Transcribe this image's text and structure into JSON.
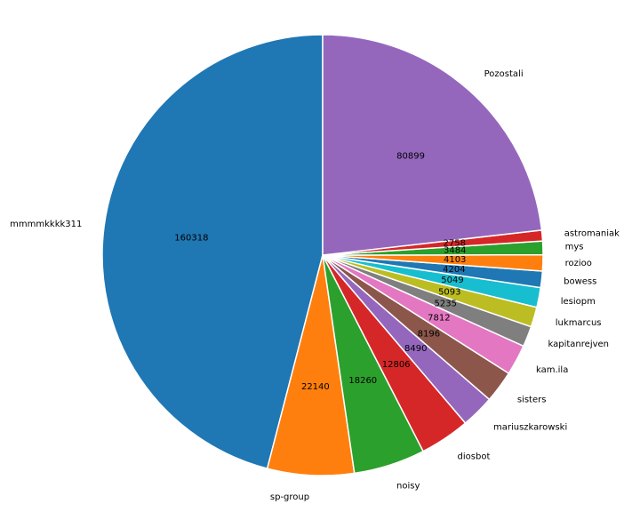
{
  "chart_data": {
    "type": "pie",
    "title": "",
    "slices": [
      {
        "label": "mmmmkkkk311",
        "value": 160318,
        "color": "#1f77b4"
      },
      {
        "label": "sp-group",
        "value": 22140,
        "color": "#ff7f0e"
      },
      {
        "label": "noisy",
        "value": 18260,
        "color": "#2ca02c"
      },
      {
        "label": "diosbot",
        "value": 12806,
        "color": "#d62728"
      },
      {
        "label": "mariuszkarowski",
        "value": 8490,
        "color": "#9467bd"
      },
      {
        "label": "sisters",
        "value": 8196,
        "color": "#8c564b"
      },
      {
        "label": "kam.ila",
        "value": 7812,
        "color": "#e377c2"
      },
      {
        "label": "kapitanrejven",
        "value": 5235,
        "color": "#7f7f7f"
      },
      {
        "label": "lukmarcus",
        "value": 5093,
        "color": "#bcbd22"
      },
      {
        "label": "lesiopm",
        "value": 5049,
        "color": "#17becf"
      },
      {
        "label": "bowess",
        "value": 4204,
        "color": "#1f77b4"
      },
      {
        "label": "rozioo",
        "value": 4103,
        "color": "#ff7f0e"
      },
      {
        "label": "mys",
        "value": 3484,
        "color": "#2ca02c"
      },
      {
        "label": "astromaniak",
        "value": 2758,
        "color": "#d62728"
      },
      {
        "label": "Pozostali",
        "value": 80899,
        "color": "#9467bd"
      }
    ],
    "start_angle": "top, going counter-clockwise",
    "slice_edge_color": "#ffffff",
    "legend": "none"
  }
}
